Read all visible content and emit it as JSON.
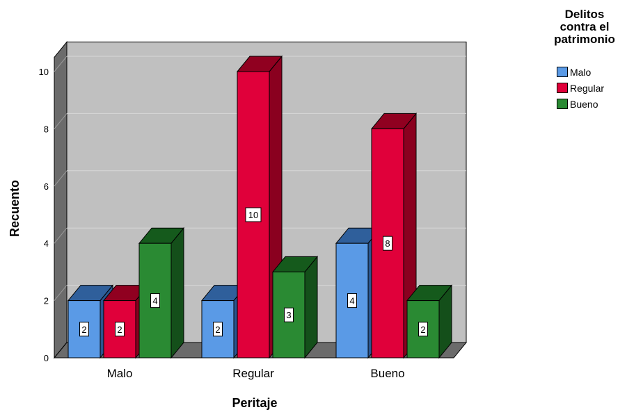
{
  "chart_data": {
    "type": "bar",
    "xlabel": "Peritaje",
    "ylabel": "Recuento",
    "categories": [
      "Malo",
      "Regular",
      "Bueno"
    ],
    "ylim": [
      0,
      10.5
    ],
    "yticks": [
      0,
      2,
      4,
      6,
      8,
      10
    ],
    "legend_title": "Delitos contra el patrimonio",
    "legend_position": "top-right",
    "grid": true,
    "three_d": true,
    "data_labels": true,
    "series": [
      {
        "name": "Malo",
        "values": [
          2,
          2,
          4
        ],
        "color": "#5a9ae6",
        "top_color": "#2f5f9b",
        "side_color": "#2a5690"
      },
      {
        "name": "Regular",
        "values": [
          2,
          10,
          8
        ],
        "color": "#e0003a",
        "top_color": "#900020",
        "side_color": "#8a001f"
      },
      {
        "name": "Bueno",
        "values": [
          4,
          3,
          2
        ],
        "color": "#2a8a33",
        "top_color": "#155a1c",
        "side_color": "#144f1a"
      }
    ]
  }
}
